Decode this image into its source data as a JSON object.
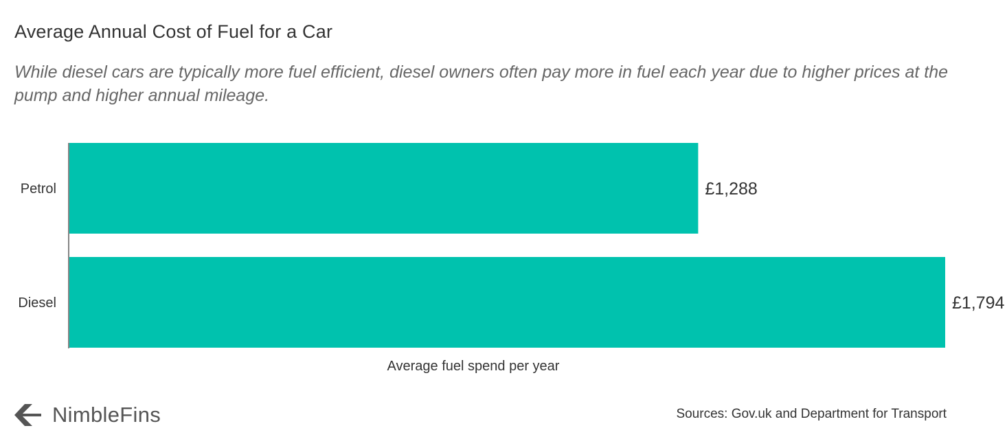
{
  "header": {
    "title": "Average Annual Cost of Fuel for a Car",
    "subtitle": "While diesel cars are typically more fuel efficient, diesel owners often pay more in fuel each year due to higher prices at the pump and higher annual mileage."
  },
  "chart_data": {
    "type": "bar",
    "orientation": "horizontal",
    "categories": [
      "Petrol",
      "Diesel"
    ],
    "values": [
      1288,
      1794
    ],
    "data_labels": [
      "£1,288",
      "£1,794"
    ],
    "xlabel": "Average fuel spend per year",
    "ylabel": "",
    "xlim": [
      0,
      1794
    ],
    "grid": false,
    "legend": "none",
    "bar_color": "#00C2AE"
  },
  "footer": {
    "brand": "NimbleFins",
    "source": "Sources: Gov.uk and Department for Transport",
    "logo_icon": "chevron-left-logo-icon",
    "logo_color": "#555555"
  }
}
